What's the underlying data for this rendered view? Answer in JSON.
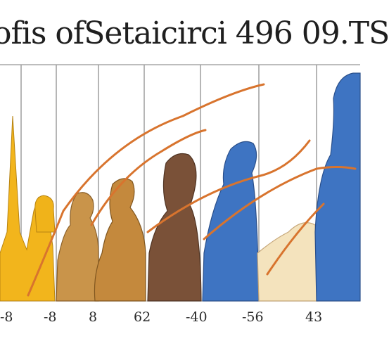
{
  "title": "ofis ofSetaicirci 496 09.TS",
  "tick_labels": [
    "-8",
    "-8",
    "8",
    "62",
    "-40",
    "-56",
    "43"
  ],
  "colors": {
    "yellow": "#f2b51c",
    "tan": "#c9944a",
    "brown": "#7a5138",
    "blue": "#3e74c2",
    "cream": "#f4e3bd",
    "orange_line": "#d8742e",
    "rule": "#bdbdbd"
  }
}
